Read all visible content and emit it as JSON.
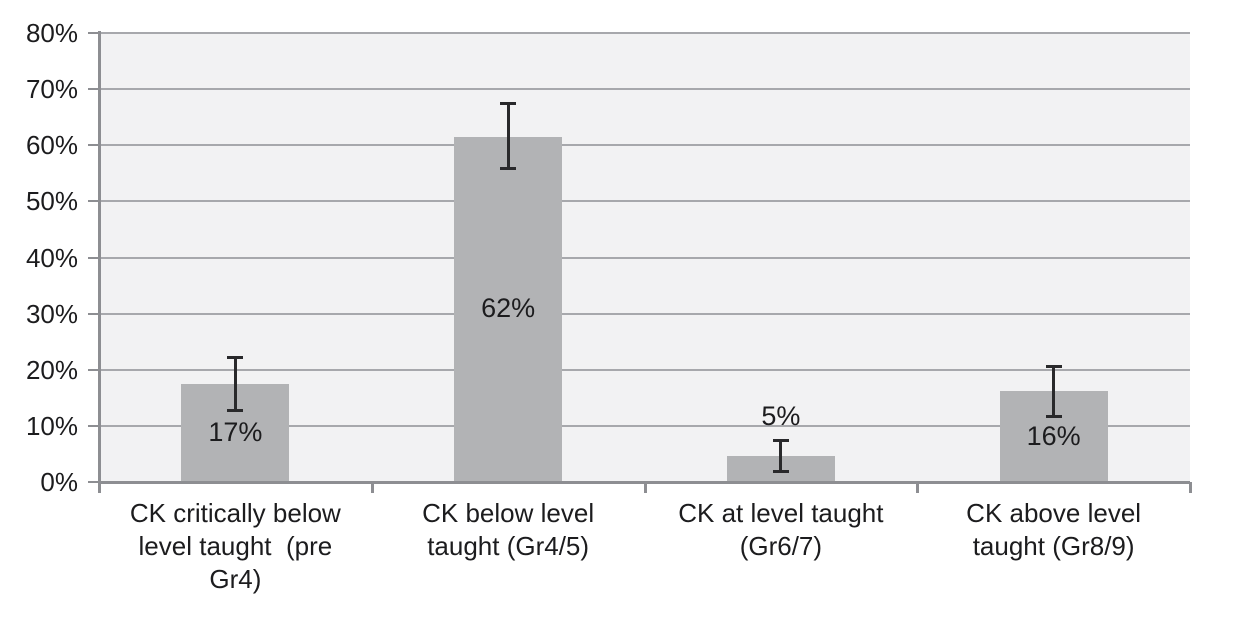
{
  "chart_data": {
    "type": "bar",
    "title": "",
    "xlabel": "",
    "ylabel": "",
    "ylim": [
      0,
      80
    ],
    "ytick_step": 10,
    "ytick_labels": [
      "0%",
      "10%",
      "20%",
      "30%",
      "40%",
      "50%",
      "60%",
      "70%",
      "80%"
    ],
    "grid": true,
    "legend_position": "none",
    "categories": [
      "CK critically below level taught  (pre Gr4)",
      "CK below level taught (Gr4/5)",
      "CK at level taught (Gr6/7)",
      "CK above level taught (Gr8/9)"
    ],
    "points": [
      {
        "category_lines": [
          "CK critically below",
          "level taught  (pre",
          "Gr4)"
        ],
        "value": 17.5,
        "data_label": "17%",
        "data_label_position": "inside",
        "error_low": 12.7,
        "error_high": 22.2
      },
      {
        "category_lines": [
          "CK below level",
          "taught (Gr4/5)"
        ],
        "value": 61.5,
        "data_label": "62%",
        "data_label_position": "inside",
        "error_low": 55.7,
        "error_high": 67.5
      },
      {
        "category_lines": [
          "CK at level taught",
          "(Gr6/7)"
        ],
        "value": 4.7,
        "data_label": "5%",
        "data_label_position": "above",
        "error_low": 1.7,
        "error_high": 7.5
      },
      {
        "category_lines": [
          "CK above level",
          "taught (Gr8/9)"
        ],
        "value": 16.2,
        "data_label": "16%",
        "data_label_position": "inside",
        "error_low": 11.6,
        "error_high": 20.7
      }
    ],
    "colors": {
      "bar_fill": "#b2b3b5",
      "plot_background": "#f2f2f3",
      "gridline": "#a7a8ac",
      "axis": "#8d8e92",
      "error_bar": "#29292b",
      "text": "#1c1c1e",
      "page_background": "#ffffff"
    }
  }
}
